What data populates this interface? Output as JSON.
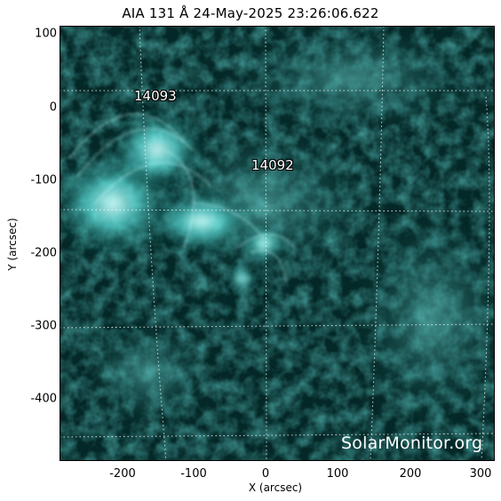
{
  "title": "AIA 131 Å 24-May-2025 23:26:06.622",
  "xlabel": "X (arcsec)",
  "ylabel": "Y (arcsec)",
  "x_ticks": [
    "-200",
    "-100",
    "0",
    "100",
    "200",
    "300"
  ],
  "y_ticks": [
    "100",
    "0",
    "-100",
    "-200",
    "-300",
    "-400"
  ],
  "regions": [
    {
      "label": "14093"
    },
    {
      "label": "14092"
    }
  ],
  "watermark": "SolarMonitor.org",
  "colors": {
    "plot_bg": "#032524",
    "emission": "#39d8d4",
    "bright": "#bff8f6"
  }
}
